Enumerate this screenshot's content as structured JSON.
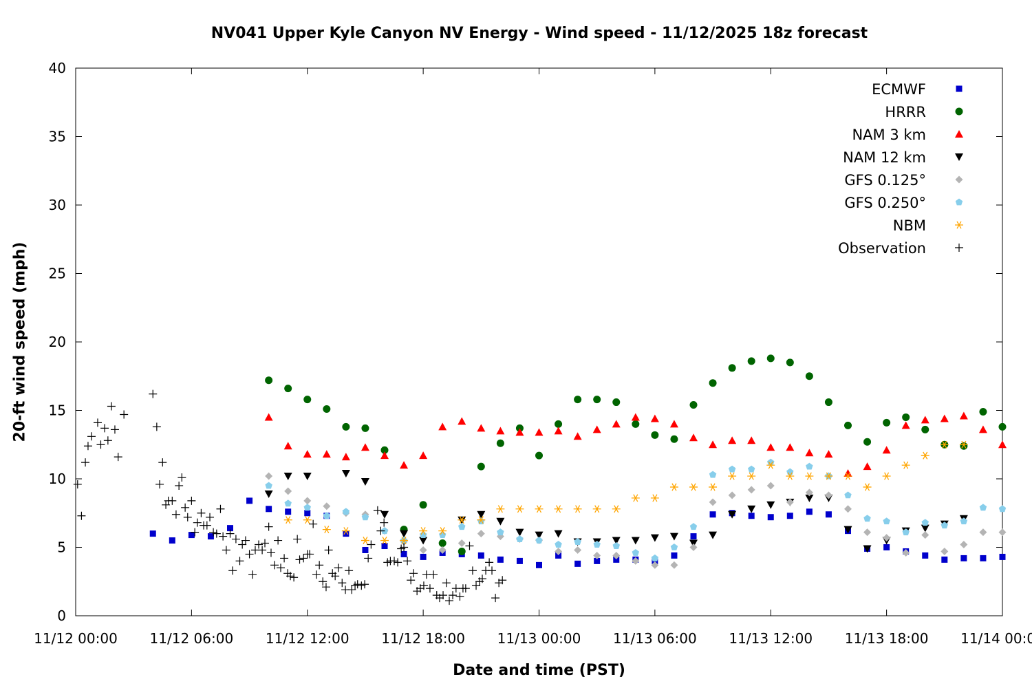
{
  "chart_data": {
    "type": "scatter",
    "title": "NV041 Upper Kyle Canyon NV Energy - Wind speed - 11/12/2025 18z forecast",
    "xlabel": "Date and time (PST)",
    "ylabel": "20-ft wind speed (mph)",
    "x_units": "hours since 11/12 00:00 PST",
    "xlim": [
      0,
      48
    ],
    "ylim": [
      0,
      40
    ],
    "yticks": [
      0,
      5,
      10,
      15,
      20,
      25,
      30,
      35,
      40
    ],
    "xticks": [
      {
        "hour": 0,
        "label": "11/12 00:00"
      },
      {
        "hour": 6,
        "label": "11/12 06:00"
      },
      {
        "hour": 12,
        "label": "11/12 12:00"
      },
      {
        "hour": 18,
        "label": "11/12 18:00"
      },
      {
        "hour": 24,
        "label": "11/13 00:00"
      },
      {
        "hour": 30,
        "label": "11/13 06:00"
      },
      {
        "hour": 36,
        "label": "11/13 12:00"
      },
      {
        "hour": 42,
        "label": "11/13 18:00"
      },
      {
        "hour": 48,
        "label": "11/14 00:00"
      }
    ],
    "grid": false,
    "legend_position": "top-right",
    "series": [
      {
        "name": "ECMWF",
        "marker": "square",
        "color": "#0000cc",
        "start_hour": 4,
        "values": [
          6.0,
          5.5,
          5.9,
          5.8,
          6.4,
          8.4,
          7.8,
          7.6,
          7.5,
          7.3,
          6.0,
          4.8,
          5.1,
          4.5,
          4.3,
          4.6,
          4.5,
          4.4,
          4.1,
          4.0,
          3.7,
          4.4,
          3.8,
          4.0,
          4.1,
          4.1,
          4.0,
          4.4,
          5.8,
          7.4,
          7.5,
          7.3,
          7.2,
          7.3,
          7.6,
          7.4,
          6.2,
          4.9,
          5.0,
          4.7,
          4.4,
          4.1,
          4.2,
          4.2,
          4.3
        ]
      },
      {
        "name": "HRRR",
        "marker": "circle",
        "color": "#006400",
        "start_hour": 10,
        "values": [
          17.2,
          16.6,
          15.8,
          15.1,
          13.8,
          13.7,
          12.1,
          6.3,
          8.1,
          5.3,
          4.7,
          10.9,
          12.6,
          13.7,
          11.7,
          14.0,
          15.8,
          15.8,
          15.6,
          14.0,
          13.2,
          12.9,
          15.4,
          17.0,
          18.1,
          18.6,
          18.8,
          18.5,
          17.5,
          15.6,
          13.9,
          12.7,
          14.1,
          14.5,
          13.6,
          12.5,
          12.4,
          14.9,
          13.8
        ]
      },
      {
        "name": "NAM 3 km",
        "marker": "triangle-up",
        "color": "#ff0000",
        "start_hour": 10,
        "values": [
          14.5,
          12.4,
          11.8,
          11.8,
          11.6,
          12.3,
          11.7,
          11.0,
          11.7,
          13.8,
          14.2,
          13.7,
          13.5,
          13.4,
          13.4,
          13.5,
          13.1,
          13.6,
          14.0,
          14.5,
          14.4,
          14.0,
          13.0,
          12.5,
          12.8,
          12.8,
          12.3,
          12.3,
          11.9,
          11.8,
          10.4,
          10.9,
          12.1,
          13.9,
          14.3,
          14.4,
          14.6,
          13.6,
          12.5
        ]
      },
      {
        "name": "NAM 12 km",
        "marker": "triangle-down",
        "color": "#000000",
        "start_hour": 10,
        "values": [
          8.9,
          10.2,
          10.2,
          null,
          10.4,
          9.8,
          7.4,
          6.0,
          5.5,
          null,
          7.0,
          7.4,
          6.9,
          6.1,
          5.9,
          6.0,
          5.4,
          5.4,
          5.5,
          5.5,
          5.7,
          5.8,
          5.3,
          5.9,
          7.4,
          7.8,
          8.1,
          8.3,
          8.6,
          8.6,
          6.3,
          4.9,
          5.5,
          6.2,
          6.4,
          6.7,
          7.1
        ]
      },
      {
        "name": "GFS 0.125°",
        "marker": "diamond",
        "color": "#b4b4b4",
        "start_hour": 10,
        "values": [
          10.2,
          9.1,
          8.4,
          8.0,
          7.5,
          7.4,
          6.2,
          5.4,
          4.8,
          4.8,
          5.3,
          6.0,
          5.8,
          5.6,
          5.5,
          4.7,
          4.8,
          4.4,
          4.4,
          4.0,
          3.7,
          3.7,
          5.0,
          8.3,
          8.8,
          9.2,
          9.5,
          8.3,
          9.0,
          8.8,
          7.8,
          6.1,
          5.7,
          4.6,
          5.9,
          4.7,
          5.2,
          6.1,
          6.1
        ]
      },
      {
        "name": "GFS 0.250°",
        "marker": "pentagon",
        "color": "#87ceeb",
        "start_hour": 10,
        "values": [
          9.5,
          8.2,
          7.9,
          7.3,
          7.6,
          7.2,
          6.2,
          5.5,
          5.9,
          5.9,
          6.5,
          6.9,
          6.1,
          5.6,
          5.5,
          5.2,
          5.4,
          5.2,
          5.1,
          4.6,
          4.2,
          5.0,
          6.5,
          10.3,
          10.7,
          10.7,
          11.2,
          10.5,
          10.9,
          10.2,
          8.8,
          7.1,
          6.9,
          6.1,
          6.8,
          6.6,
          6.9,
          7.9,
          7.8
        ]
      },
      {
        "name": "NBM",
        "marker": "asterisk",
        "color": "#ffa500",
        "start_hour": 11,
        "values": [
          7.0,
          7.0,
          6.3,
          6.2,
          5.5,
          5.5,
          5.5,
          6.2,
          6.2,
          7.0,
          7.0,
          7.8,
          7.8,
          7.8,
          7.8,
          7.8,
          7.8,
          7.8,
          8.6,
          8.6,
          9.4,
          9.4,
          9.4,
          10.2,
          10.2,
          11.0,
          10.2,
          10.2,
          10.2,
          10.2,
          9.4,
          10.2,
          11.0,
          11.7,
          12.5,
          12.5
        ]
      },
      {
        "name": "Observation",
        "marker": "plus",
        "color": "#000000",
        "points": [
          [
            0.1,
            9.6
          ],
          [
            0.3,
            7.3
          ],
          [
            0.5,
            11.2
          ],
          [
            0.64,
            12.4
          ],
          [
            0.82,
            13.1
          ],
          [
            1.14,
            14.1
          ],
          [
            1.3,
            12.5
          ],
          [
            1.5,
            13.7
          ],
          [
            1.67,
            12.8
          ],
          [
            1.85,
            15.3
          ],
          [
            2.03,
            13.6
          ],
          [
            2.2,
            11.6
          ],
          [
            2.5,
            14.7
          ],
          [
            4.0,
            16.2
          ],
          [
            4.2,
            13.8
          ],
          [
            4.35,
            9.6
          ],
          [
            4.5,
            11.2
          ],
          [
            4.67,
            8.1
          ],
          [
            4.8,
            8.4
          ],
          [
            5.0,
            8.4
          ],
          [
            5.2,
            7.4
          ],
          [
            5.35,
            9.5
          ],
          [
            5.5,
            10.1
          ],
          [
            5.67,
            7.9
          ],
          [
            5.8,
            7.2
          ],
          [
            6.0,
            8.4
          ],
          [
            6.17,
            6.1
          ],
          [
            6.3,
            6.8
          ],
          [
            6.5,
            7.5
          ],
          [
            6.63,
            6.6
          ],
          [
            6.8,
            6.6
          ],
          [
            6.95,
            7.2
          ],
          [
            7.13,
            6.1
          ],
          [
            7.3,
            6.0
          ],
          [
            7.5,
            7.8
          ],
          [
            7.63,
            5.8
          ],
          [
            7.8,
            4.8
          ],
          [
            8.0,
            6.0
          ],
          [
            8.13,
            3.3
          ],
          [
            8.3,
            5.6
          ],
          [
            8.5,
            4.0
          ],
          [
            8.63,
            5.2
          ],
          [
            8.8,
            5.5
          ],
          [
            9.0,
            4.5
          ],
          [
            9.16,
            3.0
          ],
          [
            9.3,
            4.8
          ],
          [
            9.48,
            5.2
          ],
          [
            9.66,
            4.8
          ],
          [
            9.8,
            5.3
          ],
          [
            10.0,
            6.5
          ],
          [
            10.12,
            4.6
          ],
          [
            10.3,
            3.7
          ],
          [
            10.48,
            5.5
          ],
          [
            10.62,
            3.5
          ],
          [
            10.8,
            4.2
          ],
          [
            10.98,
            3.1
          ],
          [
            11.12,
            2.9
          ],
          [
            11.3,
            2.8
          ],
          [
            11.48,
            5.6
          ],
          [
            11.6,
            4.1
          ],
          [
            11.8,
            4.2
          ],
          [
            12.0,
            4.5
          ],
          [
            12.12,
            4.5
          ],
          [
            12.3,
            6.7
          ],
          [
            12.47,
            3.0
          ],
          [
            12.62,
            3.7
          ],
          [
            12.8,
            2.5
          ],
          [
            12.97,
            2.1
          ],
          [
            13.1,
            4.8
          ],
          [
            13.3,
            3.1
          ],
          [
            13.44,
            2.9
          ],
          [
            13.6,
            3.5
          ],
          [
            13.8,
            2.4
          ],
          [
            13.97,
            1.9
          ],
          [
            14.15,
            3.3
          ],
          [
            14.3,
            1.9
          ],
          [
            14.47,
            2.2
          ],
          [
            14.6,
            2.3
          ],
          [
            14.8,
            2.2
          ],
          [
            14.97,
            2.3
          ],
          [
            15.15,
            4.2
          ],
          [
            15.3,
            5.2
          ],
          [
            15.64,
            7.7
          ],
          [
            15.8,
            6.2
          ],
          [
            15.97,
            6.8
          ],
          [
            16.15,
            3.9
          ],
          [
            16.3,
            4.0
          ],
          [
            16.5,
            4.0
          ],
          [
            16.68,
            3.9
          ],
          [
            16.86,
            4.9
          ],
          [
            17.0,
            5.0
          ],
          [
            17.18,
            4.0
          ],
          [
            17.36,
            2.6
          ],
          [
            17.5,
            3.1
          ],
          [
            17.68,
            1.8
          ],
          [
            17.85,
            2.0
          ],
          [
            18.03,
            2.2
          ],
          [
            18.17,
            3.0
          ],
          [
            18.35,
            2.0
          ],
          [
            18.53,
            3.0
          ],
          [
            18.7,
            1.5
          ],
          [
            18.85,
            1.3
          ],
          [
            19.03,
            1.5
          ],
          [
            19.2,
            2.4
          ],
          [
            19.35,
            1.1
          ],
          [
            19.53,
            1.5
          ],
          [
            19.7,
            2.0
          ],
          [
            19.9,
            1.4
          ],
          [
            20.06,
            2.0
          ],
          [
            20.2,
            2.0
          ],
          [
            20.4,
            5.1
          ],
          [
            20.56,
            3.3
          ],
          [
            20.74,
            2.2
          ],
          [
            20.92,
            2.5
          ],
          [
            21.06,
            2.7
          ],
          [
            21.24,
            3.3
          ],
          [
            21.42,
            3.9
          ],
          [
            21.56,
            3.3
          ],
          [
            21.74,
            1.3
          ],
          [
            21.92,
            2.4
          ],
          [
            22.1,
            2.6
          ]
        ]
      }
    ]
  }
}
